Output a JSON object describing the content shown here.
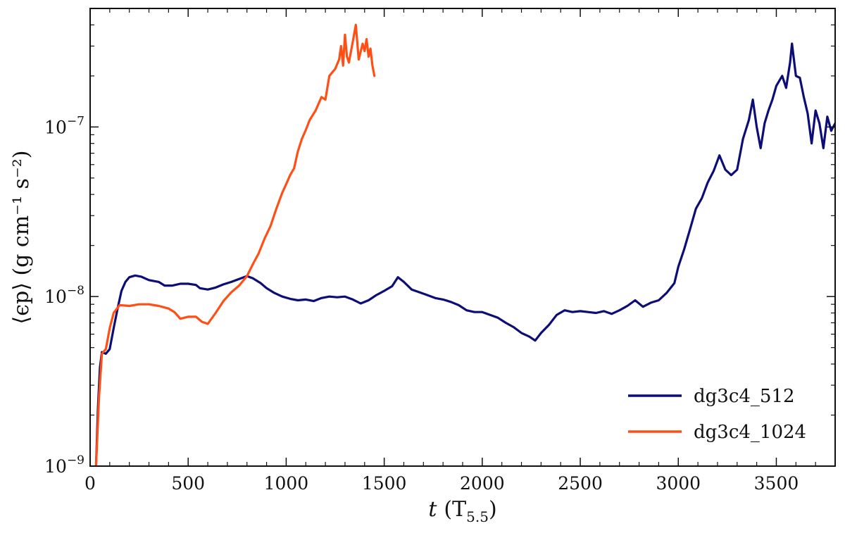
{
  "chart_data": {
    "type": "line",
    "xlabel_var": "t",
    "xlabel_unit": "(T",
    "xlabel_unit_sub": "5.5",
    "xlabel_close": ")",
    "ylabel": "⟨ϵp⟩ (g cm⁻¹ s⁻²)",
    "xlim": [
      0,
      3800
    ],
    "ylim": [
      1e-09,
      5e-07
    ],
    "yscale": "log",
    "xticks": [
      0,
      500,
      1000,
      1500,
      2000,
      2500,
      3000,
      3500
    ],
    "yticks": [
      {
        "value": 1e-09,
        "base": "10",
        "exp": "−9"
      },
      {
        "value": 1e-08,
        "base": "10",
        "exp": "−8"
      },
      {
        "value": 1e-07,
        "base": "10",
        "exp": "−7"
      }
    ],
    "grid": false,
    "legend_position": "bottom-right",
    "series": [
      {
        "name": "dg3c4_512",
        "color": "#0d0d78",
        "points": [
          [
            30,
            1e-09
          ],
          [
            40,
            2.2e-09
          ],
          [
            50,
            3.8e-09
          ],
          [
            60,
            4.7e-09
          ],
          [
            80,
            4.6e-09
          ],
          [
            100,
            4.9e-09
          ],
          [
            120,
            6.5e-09
          ],
          [
            140,
            8.5e-09
          ],
          [
            160,
            1.08e-08
          ],
          [
            180,
            1.22e-08
          ],
          [
            200,
            1.3e-08
          ],
          [
            230,
            1.33e-08
          ],
          [
            260,
            1.31e-08
          ],
          [
            300,
            1.25e-08
          ],
          [
            350,
            1.22e-08
          ],
          [
            380,
            1.16e-08
          ],
          [
            420,
            1.16e-08
          ],
          [
            460,
            1.19e-08
          ],
          [
            500,
            1.19e-08
          ],
          [
            540,
            1.17e-08
          ],
          [
            560,
            1.12e-08
          ],
          [
            600,
            1.1e-08
          ],
          [
            640,
            1.13e-08
          ],
          [
            680,
            1.18e-08
          ],
          [
            720,
            1.22e-08
          ],
          [
            760,
            1.27e-08
          ],
          [
            800,
            1.32e-08
          ],
          [
            830,
            1.28e-08
          ],
          [
            870,
            1.2e-08
          ],
          [
            900,
            1.12e-08
          ],
          [
            940,
            1.05e-08
          ],
          [
            980,
            1e-08
          ],
          [
            1020,
            9.7e-09
          ],
          [
            1060,
            9.5e-09
          ],
          [
            1100,
            9.6e-09
          ],
          [
            1140,
            9.4e-09
          ],
          [
            1180,
            9.8e-09
          ],
          [
            1220,
            1e-08
          ],
          [
            1260,
            9.9e-09
          ],
          [
            1300,
            1e-08
          ],
          [
            1340,
            9.6e-09
          ],
          [
            1380,
            9.1e-09
          ],
          [
            1420,
            9.5e-09
          ],
          [
            1460,
            1.02e-08
          ],
          [
            1500,
            1.08e-08
          ],
          [
            1540,
            1.15e-08
          ],
          [
            1570,
            1.3e-08
          ],
          [
            1600,
            1.22e-08
          ],
          [
            1640,
            1.1e-08
          ],
          [
            1680,
            1.06e-08
          ],
          [
            1720,
            1.02e-08
          ],
          [
            1760,
            9.8e-09
          ],
          [
            1800,
            9.6e-09
          ],
          [
            1840,
            9.3e-09
          ],
          [
            1880,
            8.9e-09
          ],
          [
            1920,
            8.3e-09
          ],
          [
            1960,
            8.1e-09
          ],
          [
            2000,
            8.1e-09
          ],
          [
            2040,
            7.8e-09
          ],
          [
            2080,
            7.5e-09
          ],
          [
            2120,
            7e-09
          ],
          [
            2160,
            6.6e-09
          ],
          [
            2200,
            6.1e-09
          ],
          [
            2240,
            5.8e-09
          ],
          [
            2270,
            5.5e-09
          ],
          [
            2300,
            6.1e-09
          ],
          [
            2340,
            6.8e-09
          ],
          [
            2380,
            7.8e-09
          ],
          [
            2420,
            8.3e-09
          ],
          [
            2460,
            8.1e-09
          ],
          [
            2500,
            8.2e-09
          ],
          [
            2540,
            8.1e-09
          ],
          [
            2580,
            8e-09
          ],
          [
            2620,
            8.2e-09
          ],
          [
            2660,
            7.9e-09
          ],
          [
            2700,
            8.3e-09
          ],
          [
            2740,
            8.8e-09
          ],
          [
            2780,
            9.5e-09
          ],
          [
            2820,
            8.7e-09
          ],
          [
            2860,
            9.2e-09
          ],
          [
            2900,
            9.5e-09
          ],
          [
            2940,
            1.05e-08
          ],
          [
            2980,
            1.2e-08
          ],
          [
            3000,
            1.5e-08
          ],
          [
            3030,
            1.9e-08
          ],
          [
            3060,
            2.5e-08
          ],
          [
            3090,
            3.3e-08
          ],
          [
            3120,
            3.8e-08
          ],
          [
            3150,
            4.7e-08
          ],
          [
            3180,
            5.5e-08
          ],
          [
            3210,
            6.8e-08
          ],
          [
            3240,
            5.6e-08
          ],
          [
            3270,
            5.2e-08
          ],
          [
            3300,
            5.6e-08
          ],
          [
            3330,
            8.5e-08
          ],
          [
            3360,
            1.1e-07
          ],
          [
            3380,
            1.45e-07
          ],
          [
            3400,
            1e-07
          ],
          [
            3420,
            7.5e-08
          ],
          [
            3440,
            1.05e-07
          ],
          [
            3460,
            1.25e-07
          ],
          [
            3480,
            1.45e-07
          ],
          [
            3500,
            1.75e-07
          ],
          [
            3530,
            2e-07
          ],
          [
            3550,
            1.7e-07
          ],
          [
            3570,
            2.4e-07
          ],
          [
            3580,
            3.1e-07
          ],
          [
            3600,
            2e-07
          ],
          [
            3620,
            1.95e-07
          ],
          [
            3640,
            1.5e-07
          ],
          [
            3660,
            1.2e-07
          ],
          [
            3680,
            8e-08
          ],
          [
            3700,
            1.25e-07
          ],
          [
            3720,
            1.05e-07
          ],
          [
            3740,
            7.5e-08
          ],
          [
            3760,
            1.15e-07
          ],
          [
            3780,
            9.5e-08
          ],
          [
            3800,
            1.05e-07
          ]
        ]
      },
      {
        "name": "dg3c4_1024",
        "color": "#ff4f14",
        "points": [
          [
            30,
            1e-09
          ],
          [
            45,
            2.5e-09
          ],
          [
            60,
            4.6e-09
          ],
          [
            80,
            4.9e-09
          ],
          [
            100,
            6.5e-09
          ],
          [
            120,
            8e-09
          ],
          [
            150,
            8.9e-09
          ],
          [
            200,
            8.8e-09
          ],
          [
            250,
            9e-09
          ],
          [
            300,
            9e-09
          ],
          [
            350,
            8.8e-09
          ],
          [
            400,
            8.5e-09
          ],
          [
            430,
            8.1e-09
          ],
          [
            460,
            7.4e-09
          ],
          [
            500,
            7.6e-09
          ],
          [
            540,
            7.6e-09
          ],
          [
            570,
            7.1e-09
          ],
          [
            600,
            6.9e-09
          ],
          [
            640,
            8e-09
          ],
          [
            680,
            9.4e-09
          ],
          [
            720,
            1.06e-08
          ],
          [
            760,
            1.16e-08
          ],
          [
            800,
            1.32e-08
          ],
          [
            830,
            1.55e-08
          ],
          [
            860,
            1.8e-08
          ],
          [
            890,
            2.2e-08
          ],
          [
            920,
            2.6e-08
          ],
          [
            950,
            3.3e-08
          ],
          [
            980,
            4.1e-08
          ],
          [
            1000,
            4.6e-08
          ],
          [
            1020,
            5.2e-08
          ],
          [
            1040,
            5.7e-08
          ],
          [
            1060,
            7.2e-08
          ],
          [
            1080,
            8.5e-08
          ],
          [
            1100,
            9.6e-08
          ],
          [
            1120,
            1.1e-07
          ],
          [
            1150,
            1.25e-07
          ],
          [
            1180,
            1.5e-07
          ],
          [
            1200,
            1.45e-07
          ],
          [
            1220,
            2e-07
          ],
          [
            1250,
            2.2e-07
          ],
          [
            1270,
            2.5e-07
          ],
          [
            1280,
            3e-07
          ],
          [
            1290,
            2.3e-07
          ],
          [
            1300,
            3.5e-07
          ],
          [
            1310,
            2.6e-07
          ],
          [
            1320,
            2.4e-07
          ],
          [
            1340,
            3.2e-07
          ],
          [
            1355,
            4e-07
          ],
          [
            1370,
            2.5e-07
          ],
          [
            1390,
            3.1e-07
          ],
          [
            1400,
            2.8e-07
          ],
          [
            1410,
            3.3e-07
          ],
          [
            1420,
            2.6e-07
          ],
          [
            1430,
            2.9e-07
          ],
          [
            1440,
            2.3e-07
          ],
          [
            1450,
            2e-07
          ]
        ]
      }
    ]
  }
}
